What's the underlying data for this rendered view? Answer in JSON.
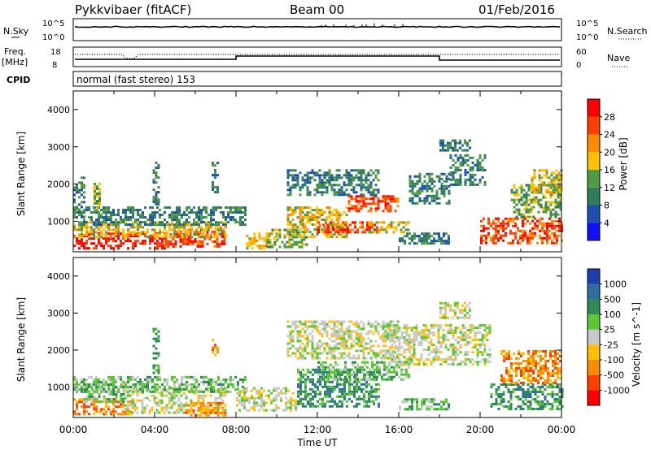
{
  "header": {
    "station": "Pykkvibaer (fitACF)",
    "beam": "Beam 00",
    "date": "01/Feb/2016"
  },
  "sky_panel": {
    "left_label": "N.Sky",
    "right_label": "N.Search",
    "left_ticks": [
      "10^5",
      "10^0"
    ],
    "right_ticks": [
      "10^5",
      "10^0"
    ]
  },
  "freq_panel": {
    "left_label_1": "Freq.",
    "left_label_2": "[MHz]",
    "right_label": "Nave",
    "left_ticks": [
      "18",
      "8"
    ],
    "right_ticks": [
      "60",
      "0"
    ]
  },
  "cpid": {
    "label": "CPID",
    "value": "normal (fast stereo) 153"
  },
  "chart_data": [
    {
      "type": "heatmap",
      "title": "",
      "xlabel": "Time UT",
      "ylabel": "Slant Range [km]",
      "x_ticks": [
        "00:00",
        "04:00",
        "08:00",
        "12:00",
        "16:00",
        "20:00",
        "00:00"
      ],
      "xlim_hours": [
        0,
        24
      ],
      "ylim": [
        180,
        4500
      ],
      "y_ticks": [
        1000,
        2000,
        3000,
        4000
      ],
      "colorbar_label": "Power [dB]",
      "colorbar_ticks": [
        "28",
        "24",
        "20",
        "16",
        "12",
        "8",
        "4"
      ],
      "colorbar_colors": [
        "#1010ff",
        "#1c4fae",
        "#2e7d5a",
        "#4f9a43",
        "#ffc000",
        "#ff8c00",
        "#ff4000",
        "#ff0000"
      ],
      "regions": [
        {
          "t0": 0.0,
          "t1": 4.5,
          "r0": 250,
          "r1": 700,
          "level": 7
        },
        {
          "t0": 4.5,
          "t1": 7.5,
          "r0": 300,
          "r1": 750,
          "level": 6
        },
        {
          "t0": 0.0,
          "t1": 7.5,
          "r0": 600,
          "r1": 1000,
          "level": 4
        },
        {
          "t0": 0.0,
          "t1": 8.5,
          "r0": 900,
          "r1": 1400,
          "level": 2
        },
        {
          "t0": 0.0,
          "t1": 0.6,
          "r0": 1100,
          "r1": 2200,
          "level": 2
        },
        {
          "t0": 1.0,
          "t1": 1.3,
          "r0": 1200,
          "r1": 2100,
          "level": 3
        },
        {
          "t0": 3.9,
          "t1": 4.2,
          "r0": 1400,
          "r1": 2600,
          "level": 2
        },
        {
          "t0": 6.8,
          "t1": 7.1,
          "r0": 1800,
          "r1": 2600,
          "level": 2
        },
        {
          "t0": 8.5,
          "t1": 10.0,
          "r0": 250,
          "r1": 700,
          "level": 4
        },
        {
          "t0": 9.5,
          "t1": 11.5,
          "r0": 300,
          "r1": 800,
          "level": 3
        },
        {
          "t0": 10.5,
          "t1": 13.5,
          "r0": 600,
          "r1": 1400,
          "level": 4
        },
        {
          "t0": 12.0,
          "t1": 15.0,
          "r0": 700,
          "r1": 1000,
          "level": 6
        },
        {
          "t0": 13.5,
          "t1": 16.0,
          "r0": 1300,
          "r1": 1700,
          "level": 6
        },
        {
          "t0": 10.5,
          "t1": 15.0,
          "r0": 1700,
          "r1": 2400,
          "level": 2
        },
        {
          "t0": 14.5,
          "t1": 16.5,
          "r0": 700,
          "r1": 1000,
          "level": 4
        },
        {
          "t0": 16.5,
          "t1": 18.5,
          "r0": 1500,
          "r1": 2300,
          "level": 2
        },
        {
          "t0": 18.5,
          "t1": 20.3,
          "r0": 2000,
          "r1": 2800,
          "level": 2
        },
        {
          "t0": 18.0,
          "t1": 19.5,
          "r0": 2900,
          "r1": 3200,
          "level": 2
        },
        {
          "t0": 16.0,
          "t1": 18.5,
          "r0": 400,
          "r1": 700,
          "level": 2
        },
        {
          "t0": 20.0,
          "t1": 24.0,
          "r0": 400,
          "r1": 1100,
          "level": 6
        },
        {
          "t0": 21.5,
          "t1": 24.0,
          "r0": 1100,
          "r1": 2000,
          "level": 3
        },
        {
          "t0": 22.5,
          "t1": 24.0,
          "r0": 1800,
          "r1": 2400,
          "level": 4
        }
      ]
    },
    {
      "type": "heatmap",
      "title": "",
      "xlabel": "Time UT",
      "ylabel": "Slant Range [km]",
      "x_ticks": [
        "00:00",
        "04:00",
        "08:00",
        "12:00",
        "16:00",
        "20:00",
        "00:00"
      ],
      "xlim_hours": [
        0,
        24
      ],
      "ylim": [
        180,
        4500
      ],
      "y_ticks": [
        1000,
        2000,
        3000,
        4000
      ],
      "colorbar_label": "Velocity [m s^-1]",
      "colorbar_ticks": [
        "1000",
        "500",
        "100",
        "25",
        "-25",
        "-100",
        "-500",
        "-1000"
      ],
      "colorbar_colors": [
        "#ff0000",
        "#ff4000",
        "#ff8c00",
        "#ffc000",
        "#c8c8c8",
        "#5ac832",
        "#2e8b57",
        "#2e6e9e",
        "#1c3fae"
      ],
      "regions": [
        {
          "t0": 0.0,
          "t1": 3.0,
          "r0": 250,
          "r1": 700,
          "level": 2
        },
        {
          "t0": 0.5,
          "t1": 2.5,
          "r0": 600,
          "r1": 1100,
          "level": 5
        },
        {
          "t0": 2.5,
          "t1": 7.5,
          "r0": 300,
          "r1": 1000,
          "level": 4
        },
        {
          "t0": 5.5,
          "t1": 7.5,
          "r0": 250,
          "r1": 600,
          "level": 2
        },
        {
          "t0": 0.0,
          "t1": 8.5,
          "r0": 900,
          "r1": 1300,
          "level": 5
        },
        {
          "t0": 3.9,
          "t1": 4.2,
          "r0": 1400,
          "r1": 2600,
          "level": 6
        },
        {
          "t0": 6.8,
          "t1": 7.1,
          "r0": 1900,
          "r1": 2300,
          "level": 2
        },
        {
          "t0": 8.0,
          "t1": 11.0,
          "r0": 400,
          "r1": 1000,
          "level": 4
        },
        {
          "t0": 10.5,
          "t1": 16.0,
          "r0": 1800,
          "r1": 2800,
          "level": 4
        },
        {
          "t0": 11.0,
          "t1": 15.0,
          "r0": 500,
          "r1": 1500,
          "level": 6
        },
        {
          "t0": 12.0,
          "t1": 16.5,
          "r0": 1200,
          "r1": 1700,
          "level": 5
        },
        {
          "t0": 15.5,
          "t1": 20.5,
          "r0": 1600,
          "r1": 2700,
          "level": 4
        },
        {
          "t0": 18.0,
          "t1": 19.5,
          "r0": 2900,
          "r1": 3300,
          "level": 4
        },
        {
          "t0": 16.0,
          "t1": 18.5,
          "r0": 400,
          "r1": 700,
          "level": 5
        },
        {
          "t0": 20.5,
          "t1": 24.0,
          "r0": 400,
          "r1": 1100,
          "level": 6
        },
        {
          "t0": 21.0,
          "t1": 24.0,
          "r0": 1100,
          "r1": 2000,
          "level": 2
        }
      ]
    }
  ]
}
